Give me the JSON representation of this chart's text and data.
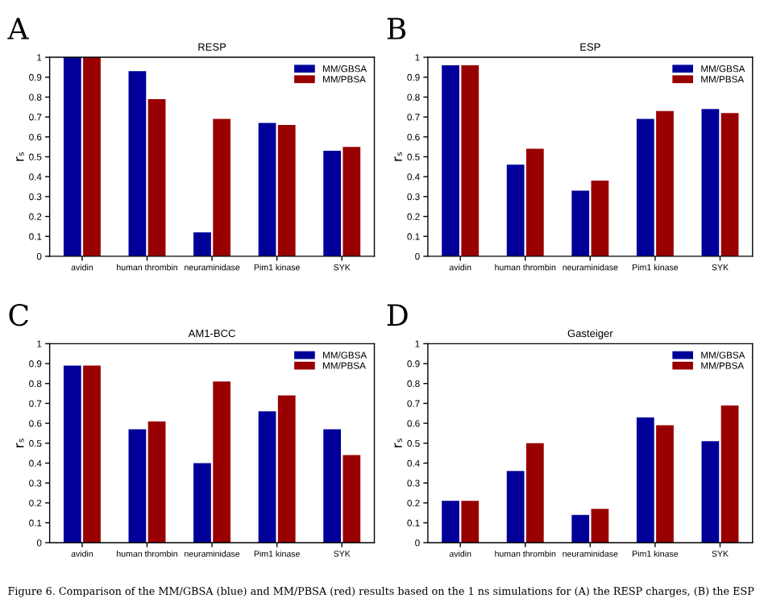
{
  "chart_data": [
    {
      "type": "bar",
      "title": "RESP",
      "ylabel": "rₛ",
      "annotations": [
        "A"
      ],
      "categories": [
        "avidin",
        "human thrombin",
        "neuraminidase",
        "Pim1 kinase",
        "SYK"
      ],
      "series": [
        {
          "name": "MM/GBSA",
          "color": "#000099",
          "values": [
            1.0,
            0.93,
            0.12,
            0.67,
            0.53
          ]
        },
        {
          "name": "MM/PBSA",
          "color": "#990000",
          "values": [
            1.0,
            0.79,
            0.69,
            0.66,
            0.55
          ]
        }
      ],
      "ylim": [
        0,
        1
      ],
      "yticks": [
        0,
        0.1,
        0.2,
        0.3,
        0.4,
        0.5,
        0.6,
        0.7,
        0.8,
        0.9,
        1
      ],
      "legend": "top right",
      "grid": false
    },
    {
      "type": "bar",
      "title": "ESP",
      "ylabel": "rₛ",
      "annotations": [
        "B"
      ],
      "categories": [
        "avidin",
        "human thrombin",
        "neuraminidase",
        "Pim1 kinase",
        "SYK"
      ],
      "series": [
        {
          "name": "MM/GBSA",
          "color": "#000099",
          "values": [
            0.96,
            0.46,
            0.33,
            0.69,
            0.74
          ]
        },
        {
          "name": "MM/PBSA",
          "color": "#990000",
          "values": [
            0.96,
            0.54,
            0.38,
            0.73,
            0.72
          ]
        }
      ],
      "ylim": [
        0,
        1
      ],
      "yticks": [
        0,
        0.1,
        0.2,
        0.3,
        0.4,
        0.5,
        0.6,
        0.7,
        0.8,
        0.9,
        1
      ],
      "legend": "top right",
      "grid": false
    },
    {
      "type": "bar",
      "title": "AM1-BCC",
      "ylabel": "rₛ",
      "annotations": [
        "C",
        "Figure 6. Comparison of the MM/GBSA (blue) and MM/PBSA (red) results based on the 1 ns simulations for (A) the RESP charges, (B) the ESP"
      ],
      "categories": [
        "avidin",
        "human thrombin",
        "neuraminidase",
        "Pim1 kinase",
        "SYK"
      ],
      "series": [
        {
          "name": "MM/GBSA",
          "color": "#000099",
          "values": [
            0.89,
            0.57,
            0.4,
            0.66,
            0.57
          ]
        },
        {
          "name": "MM/PBSA",
          "color": "#990000",
          "values": [
            0.89,
            0.61,
            0.81,
            0.74,
            0.44
          ]
        }
      ],
      "ylim": [
        0,
        1
      ],
      "yticks": [
        0,
        0.1,
        0.2,
        0.3,
        0.4,
        0.5,
        0.6,
        0.7,
        0.8,
        0.9,
        1
      ],
      "legend": "top right",
      "grid": false
    },
    {
      "type": "bar",
      "title": "Gasteiger",
      "ylabel": "rₛ",
      "annotations": [
        "D"
      ],
      "categories": [
        "avidin",
        "human thrombin",
        "neuraminidase",
        "Pim1 kinase",
        "SYK"
      ],
      "series": [
        {
          "name": "MM/GBSA",
          "color": "#000099",
          "values": [
            0.21,
            0.36,
            0.14,
            0.63,
            0.51
          ]
        },
        {
          "name": "MM/PBSA",
          "color": "#990000",
          "values": [
            0.21,
            0.5,
            0.17,
            0.59,
            0.69
          ]
        }
      ],
      "ylim": [
        0,
        1
      ],
      "yticks": [
        0,
        0.1,
        0.2,
        0.3,
        0.4,
        0.5,
        0.6,
        0.7,
        0.8,
        0.9,
        1
      ],
      "legend": "top right",
      "grid": false
    }
  ]
}
